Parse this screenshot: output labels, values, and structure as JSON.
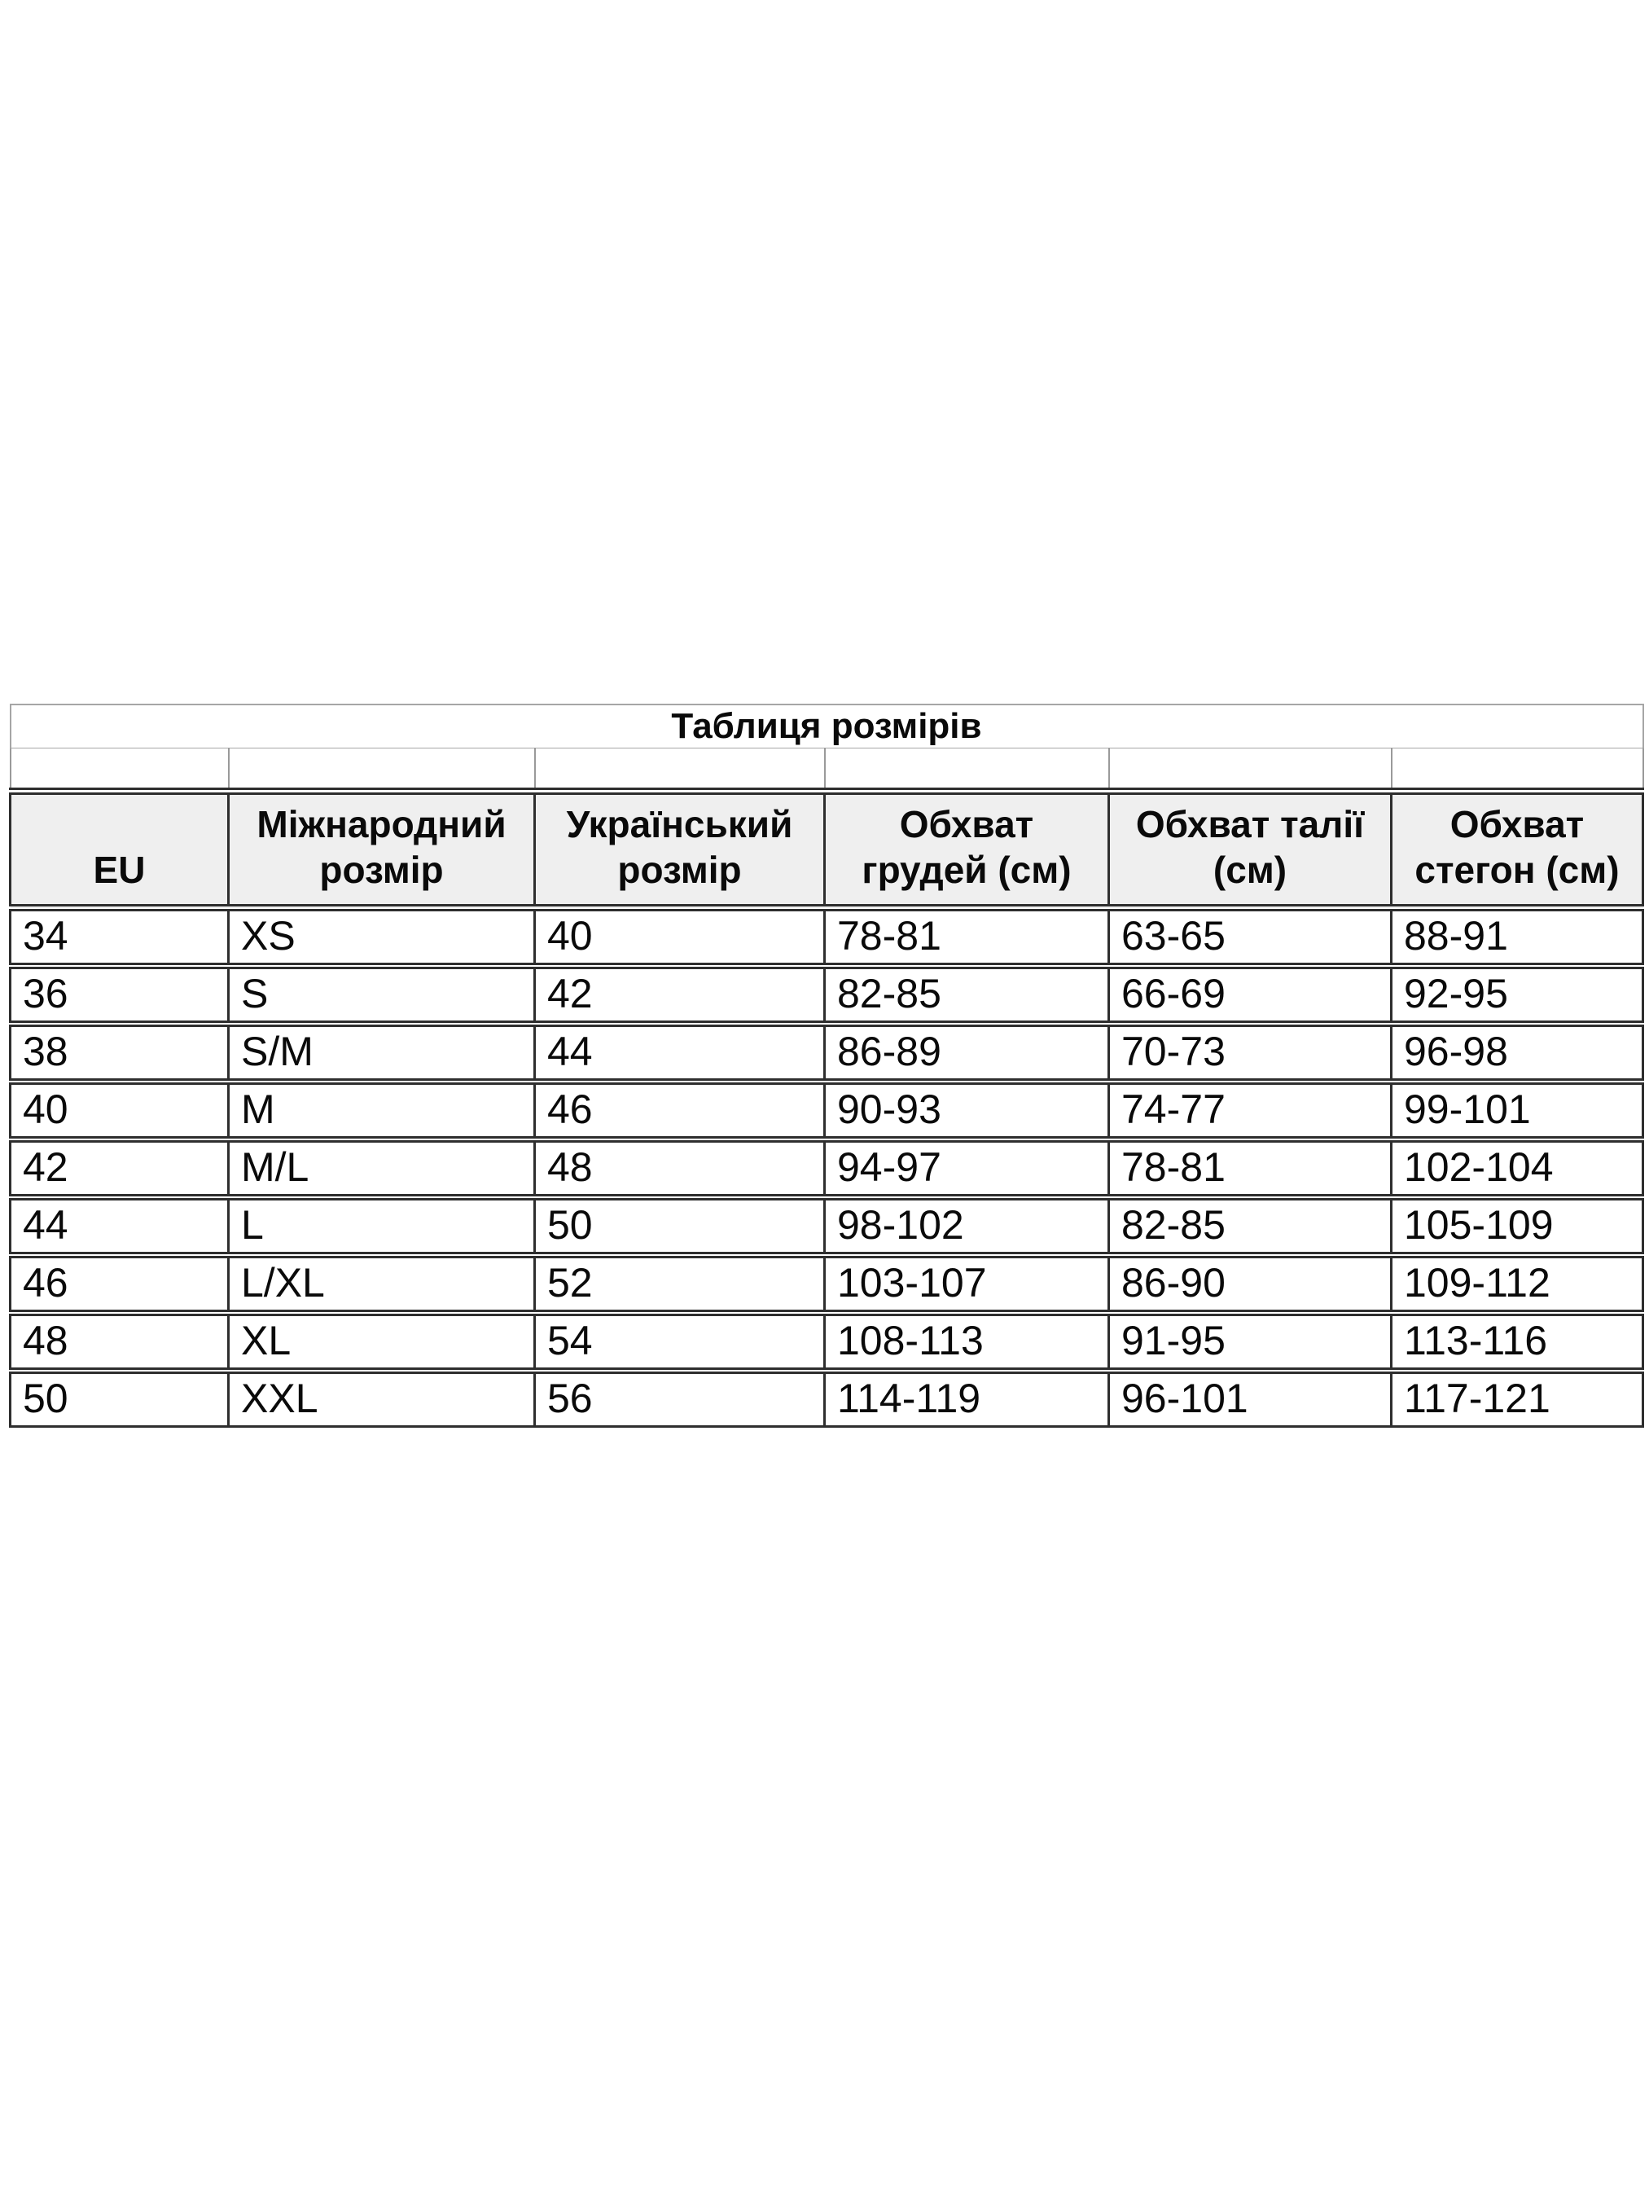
{
  "chart_data": {
    "type": "table",
    "title": "Таблиця розмірів",
    "columns": [
      "EU",
      "Міжнародний розмір",
      "Український розмір",
      "Обхват грудей (см)",
      "Обхват талії (см)",
      "Обхват стегон (см)"
    ],
    "rows": [
      [
        "34",
        "XS",
        "40",
        "78-81",
        "63-65",
        "88-91"
      ],
      [
        "36",
        "S",
        "42",
        "82-85",
        "66-69",
        "92-95"
      ],
      [
        "38",
        "S/M",
        "44",
        "86-89",
        "70-73",
        "96-98"
      ],
      [
        "40",
        "M",
        "46",
        "90-93",
        "74-77",
        "99-101"
      ],
      [
        "42",
        "M/L",
        "48",
        "94-97",
        "78-81",
        "102-104"
      ],
      [
        "44",
        "L",
        "50",
        "98-102",
        "82-85",
        "105-109"
      ],
      [
        "46",
        "L/XL",
        "52",
        "103-107",
        "86-90",
        "109-112"
      ],
      [
        "48",
        "XL",
        "54",
        "108-113",
        "91-95",
        "113-116"
      ],
      [
        "50",
        "XXL",
        "56",
        "114-119",
        "96-101",
        "117-121"
      ]
    ],
    "layout_hints": {
      "title_position": "top-merged-cell",
      "header_background": "#efefef",
      "grid": true
    }
  },
  "colors": {
    "page_background": "#ffffff",
    "header_background": "#efefef",
    "border_dark": "#2e2e2e",
    "border_light": "#a6a6a6",
    "text": "#0a0a0a"
  }
}
